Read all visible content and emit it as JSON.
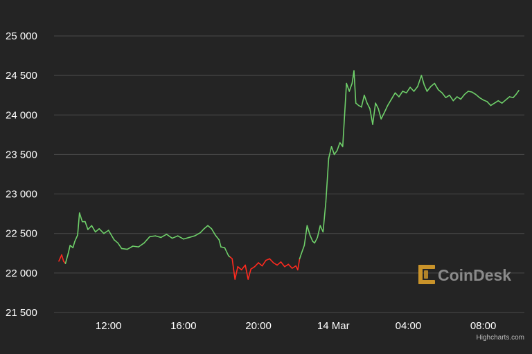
{
  "colors": {
    "background": "#242424",
    "gridline": "#4a4a4a",
    "up": "#6fd06a",
    "down": "#ff2a1f",
    "logo_mark": "#c9932a",
    "logo_text": "#8a8a8a"
  },
  "watermark": {
    "text": "CoinDesk"
  },
  "credit": {
    "text": "Highcharts.com"
  },
  "chart_data": {
    "type": "line",
    "title": "",
    "xlabel": "",
    "ylabel": "",
    "ylim": [
      21500,
      25000
    ],
    "yticks": [
      {
        "value": 21500,
        "label": "21 500"
      },
      {
        "value": 22000,
        "label": "22 000"
      },
      {
        "value": 22500,
        "label": "22 500"
      },
      {
        "value": 23000,
        "label": "23 000"
      },
      {
        "value": 23500,
        "label": "23 500"
      },
      {
        "value": 24000,
        "label": "24 000"
      },
      {
        "value": 24500,
        "label": "24 500"
      },
      {
        "value": 25000,
        "label": "25 000"
      }
    ],
    "xlim_hours": [
      9.35,
      33.9
    ],
    "xticks": [
      {
        "hour": 12,
        "label": "12:00"
      },
      {
        "hour": 16,
        "label": "16:00"
      },
      {
        "hour": 20,
        "label": "20:00"
      },
      {
        "hour": 24,
        "label": "14 Mar"
      },
      {
        "hour": 28,
        "label": "04:00"
      },
      {
        "hour": 32,
        "label": "08:00"
      }
    ],
    "grid": true,
    "legend": false,
    "color_rule": "segments below 22200 drawn red, otherwise green",
    "threshold": 22200,
    "series": [
      {
        "points": [
          [
            9.35,
            22150
          ],
          [
            9.5,
            22230
          ],
          [
            9.6,
            22150
          ],
          [
            9.7,
            22120
          ],
          [
            9.85,
            22250
          ],
          [
            9.95,
            22350
          ],
          [
            10.1,
            22320
          ],
          [
            10.2,
            22400
          ],
          [
            10.35,
            22480
          ],
          [
            10.45,
            22760
          ],
          [
            10.6,
            22650
          ],
          [
            10.75,
            22650
          ],
          [
            10.9,
            22550
          ],
          [
            11.1,
            22600
          ],
          [
            11.3,
            22520
          ],
          [
            11.5,
            22560
          ],
          [
            11.75,
            22500
          ],
          [
            12.0,
            22540
          ],
          [
            12.3,
            22420
          ],
          [
            12.5,
            22380
          ],
          [
            12.7,
            22310
          ],
          [
            13.0,
            22300
          ],
          [
            13.3,
            22340
          ],
          [
            13.6,
            22330
          ],
          [
            13.9,
            22380
          ],
          [
            14.2,
            22460
          ],
          [
            14.5,
            22470
          ],
          [
            14.8,
            22450
          ],
          [
            15.1,
            22490
          ],
          [
            15.4,
            22440
          ],
          [
            15.7,
            22470
          ],
          [
            16.0,
            22430
          ],
          [
            16.3,
            22450
          ],
          [
            16.6,
            22470
          ],
          [
            16.9,
            22510
          ],
          [
            17.1,
            22560
          ],
          [
            17.3,
            22600
          ],
          [
            17.5,
            22560
          ],
          [
            17.7,
            22480
          ],
          [
            17.9,
            22420
          ],
          [
            18.0,
            22330
          ],
          [
            18.2,
            22320
          ],
          [
            18.4,
            22220
          ],
          [
            18.5,
            22200
          ],
          [
            18.6,
            22180
          ],
          [
            18.75,
            21920
          ],
          [
            18.9,
            22080
          ],
          [
            19.1,
            22040
          ],
          [
            19.3,
            22100
          ],
          [
            19.45,
            21920
          ],
          [
            19.6,
            22050
          ],
          [
            19.8,
            22080
          ],
          [
            20.0,
            22130
          ],
          [
            20.2,
            22090
          ],
          [
            20.4,
            22160
          ],
          [
            20.6,
            22180
          ],
          [
            20.8,
            22130
          ],
          [
            21.0,
            22100
          ],
          [
            21.2,
            22140
          ],
          [
            21.4,
            22080
          ],
          [
            21.6,
            22110
          ],
          [
            21.8,
            22060
          ],
          [
            22.0,
            22090
          ],
          [
            22.1,
            22040
          ],
          [
            22.2,
            22180
          ],
          [
            22.3,
            22250
          ],
          [
            22.45,
            22350
          ],
          [
            22.6,
            22600
          ],
          [
            22.75,
            22480
          ],
          [
            22.9,
            22400
          ],
          [
            23.0,
            22380
          ],
          [
            23.15,
            22450
          ],
          [
            23.3,
            22600
          ],
          [
            23.45,
            22520
          ],
          [
            23.6,
            22900
          ],
          [
            23.75,
            23450
          ],
          [
            23.9,
            23600
          ],
          [
            24.05,
            23500
          ],
          [
            24.2,
            23550
          ],
          [
            24.35,
            23650
          ],
          [
            24.5,
            23600
          ],
          [
            24.6,
            24000
          ],
          [
            24.7,
            24400
          ],
          [
            24.85,
            24300
          ],
          [
            25.0,
            24400
          ],
          [
            25.1,
            24560
          ],
          [
            25.2,
            24150
          ],
          [
            25.35,
            24120
          ],
          [
            25.5,
            24100
          ],
          [
            25.65,
            24250
          ],
          [
            25.8,
            24150
          ],
          [
            25.95,
            24080
          ],
          [
            26.1,
            23880
          ],
          [
            26.25,
            24150
          ],
          [
            26.4,
            24080
          ],
          [
            26.55,
            23950
          ],
          [
            26.7,
            24020
          ],
          [
            26.9,
            24120
          ],
          [
            27.1,
            24200
          ],
          [
            27.3,
            24280
          ],
          [
            27.5,
            24230
          ],
          [
            27.7,
            24300
          ],
          [
            27.9,
            24280
          ],
          [
            28.1,
            24350
          ],
          [
            28.3,
            24300
          ],
          [
            28.5,
            24360
          ],
          [
            28.7,
            24500
          ],
          [
            28.85,
            24380
          ],
          [
            29.0,
            24300
          ],
          [
            29.2,
            24360
          ],
          [
            29.4,
            24400
          ],
          [
            29.6,
            24320
          ],
          [
            29.8,
            24280
          ],
          [
            30.0,
            24220
          ],
          [
            30.2,
            24250
          ],
          [
            30.4,
            24180
          ],
          [
            30.6,
            24230
          ],
          [
            30.8,
            24200
          ],
          [
            31.0,
            24260
          ],
          [
            31.2,
            24300
          ],
          [
            31.4,
            24290
          ],
          [
            31.6,
            24260
          ],
          [
            31.8,
            24220
          ],
          [
            32.0,
            24190
          ],
          [
            32.2,
            24170
          ],
          [
            32.4,
            24120
          ],
          [
            32.6,
            24150
          ],
          [
            32.8,
            24180
          ],
          [
            33.0,
            24150
          ],
          [
            33.2,
            24190
          ],
          [
            33.4,
            24230
          ],
          [
            33.6,
            24220
          ],
          [
            33.75,
            24260
          ],
          [
            33.9,
            24310
          ]
        ]
      }
    ]
  }
}
